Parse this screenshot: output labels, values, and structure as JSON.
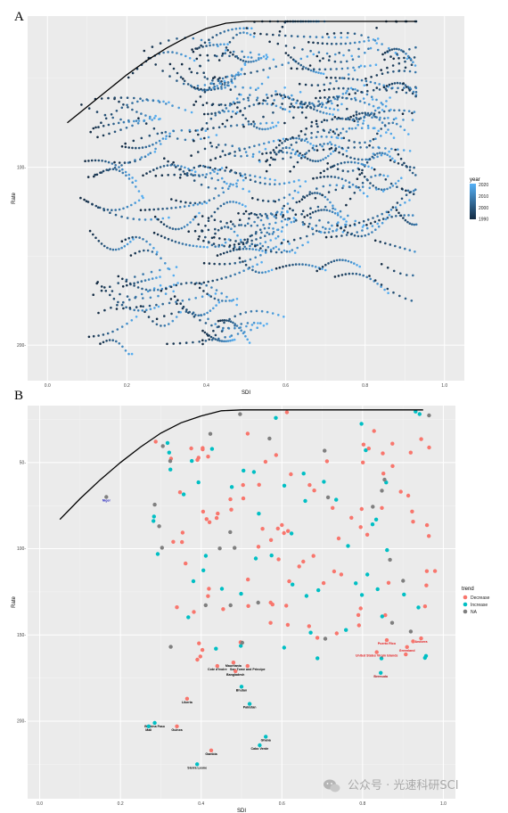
{
  "watermark": {
    "text": "公众号 · 光速科研SCI",
    "icon": "wechat-icon"
  },
  "chart_data": [
    {
      "panel": "A",
      "type": "scatter",
      "xlabel": "SDI",
      "ylabel": "Rate",
      "xlim": [
        -0.05,
        1.05
      ],
      "ylim": [
        0.22,
        0.015
      ],
      "y_reversed": true,
      "x_ticks": [
        0.0,
        0.2,
        0.4,
        0.6,
        0.8,
        1.0
      ],
      "x_tick_labels": [
        "0.0",
        "0.2",
        "0.4",
        "0.6",
        "0.8",
        "1.0"
      ],
      "y_ticks": [
        0.1,
        0.2
      ],
      "y_tick_labels": [
        "100-",
        "200-"
      ],
      "legend": {
        "title": "year",
        "position": "right",
        "labels": [
          "2020",
          "2010",
          "2000",
          "1990"
        ],
        "range": [
          1990,
          2021
        ],
        "colors": [
          "#132b43",
          "#56b1f7"
        ]
      },
      "frontier": {
        "x": [
          0.05,
          0.1,
          0.15,
          0.2,
          0.25,
          0.3,
          0.35,
          0.4,
          0.45,
          0.5,
          0.55,
          0.6,
          0.7,
          0.8,
          0.9,
          0.93
        ],
        "y": [
          0.075,
          0.066,
          0.057,
          0.048,
          0.04,
          0.033,
          0.027,
          0.022,
          0.019,
          0.018,
          0.018,
          0.018,
          0.018,
          0.018,
          0.018,
          0.018
        ]
      },
      "trajectories": {
        "count": 180,
        "years": [
          1990,
          2021
        ],
        "sdi_range": [
          0.05,
          0.93
        ],
        "rate_range": [
          0.018,
          0.205
        ]
      }
    },
    {
      "panel": "B",
      "type": "scatter",
      "xlabel": "SDI",
      "ylabel": "Rate",
      "xlim": [
        -0.03,
        1.03
      ],
      "ylim": [
        0.245,
        0.017
      ],
      "y_reversed": true,
      "x_ticks": [
        0.0,
        0.2,
        0.4,
        0.6,
        0.8,
        1.0
      ],
      "x_tick_labels": [
        "0.0",
        "0.2",
        "0.4",
        "0.6",
        "0.8",
        "1.0"
      ],
      "y_ticks": [
        0.05,
        0.1,
        0.15,
        0.2
      ],
      "y_tick_labels": [
        "50-",
        "100-",
        "150-",
        "200-"
      ],
      "legend": {
        "title": "trend",
        "position": "right",
        "items": [
          {
            "label": "Decrease",
            "color": "#f8766d"
          },
          {
            "label": "Increase",
            "color": "#00bfc4"
          },
          {
            "label": "NA",
            "color": "#7f7f7f"
          }
        ]
      },
      "frontier": {
        "x": [
          0.05,
          0.1,
          0.15,
          0.2,
          0.25,
          0.3,
          0.35,
          0.4,
          0.45,
          0.5,
          0.55,
          0.6,
          0.7,
          0.8,
          0.9,
          0.95
        ],
        "y": [
          0.083,
          0.071,
          0.06,
          0.05,
          0.041,
          0.033,
          0.027,
          0.023,
          0.02,
          0.0195,
          0.0195,
          0.0195,
          0.0195,
          0.0195,
          0.0195,
          0.0195
        ]
      },
      "labeled_points": [
        {
          "name": "Niger",
          "x": 0.165,
          "y": 0.07,
          "trend": "NA",
          "color": "#2020c0"
        },
        {
          "name": "Puerto Rico",
          "x": 0.86,
          "y": 0.153,
          "trend": "Decrease",
          "color": "#e31a1c"
        },
        {
          "name": "Andorra",
          "x": 0.945,
          "y": 0.152,
          "trend": "Decrease",
          "color": "#e31a1c"
        },
        {
          "name": "Greenland",
          "x": 0.91,
          "y": 0.157,
          "trend": "Decrease",
          "color": "#e31a1c"
        },
        {
          "name": "United States Virgin Islands",
          "x": 0.835,
          "y": 0.16,
          "trend": "Decrease",
          "color": "#e31a1c"
        },
        {
          "name": "Bermuda",
          "x": 0.845,
          "y": 0.172,
          "trend": "Increase",
          "color": "#a50f15"
        },
        {
          "name": "Mauritania",
          "x": 0.48,
          "y": 0.166,
          "trend": "Decrease",
          "color": "#000000"
        },
        {
          "name": "Sao Tome and Principe",
          "x": 0.515,
          "y": 0.168,
          "trend": "Decrease",
          "color": "#000000"
        },
        {
          "name": "Cote d'Ivoire",
          "x": 0.44,
          "y": 0.168,
          "trend": "Decrease",
          "color": "#000000"
        },
        {
          "name": "Bangladesh",
          "x": 0.485,
          "y": 0.171,
          "trend": "Decrease",
          "color": "#000000"
        },
        {
          "name": "Bhutan",
          "x": 0.5,
          "y": 0.18,
          "trend": "Increase",
          "color": "#000000"
        },
        {
          "name": "Liberia",
          "x": 0.365,
          "y": 0.187,
          "trend": "Decrease",
          "color": "#000000"
        },
        {
          "name": "Pakistan",
          "x": 0.52,
          "y": 0.19,
          "trend": "Increase",
          "color": "#000000"
        },
        {
          "name": "Burkina Faso",
          "x": 0.285,
          "y": 0.201,
          "trend": "Increase",
          "color": "#000000"
        },
        {
          "name": "Mali",
          "x": 0.27,
          "y": 0.203,
          "trend": "Increase",
          "color": "#000000"
        },
        {
          "name": "Guinea",
          "x": 0.34,
          "y": 0.203,
          "trend": "Decrease",
          "color": "#000000"
        },
        {
          "name": "Ghana",
          "x": 0.56,
          "y": 0.209,
          "trend": "Increase",
          "color": "#000000"
        },
        {
          "name": "Cabo Verde",
          "x": 0.545,
          "y": 0.214,
          "trend": "Increase",
          "color": "#000000"
        },
        {
          "name": "Gambia",
          "x": 0.425,
          "y": 0.217,
          "trend": "Decrease",
          "color": "#000000"
        },
        {
          "name": "Sierra Leone",
          "x": 0.39,
          "y": 0.225,
          "trend": "Increase",
          "color": "#000000"
        }
      ],
      "unlabeled_points": {
        "count": 185,
        "sdi_range": [
          0.28,
          0.98
        ],
        "rate_range": [
          0.02,
          0.165
        ]
      }
    }
  ]
}
